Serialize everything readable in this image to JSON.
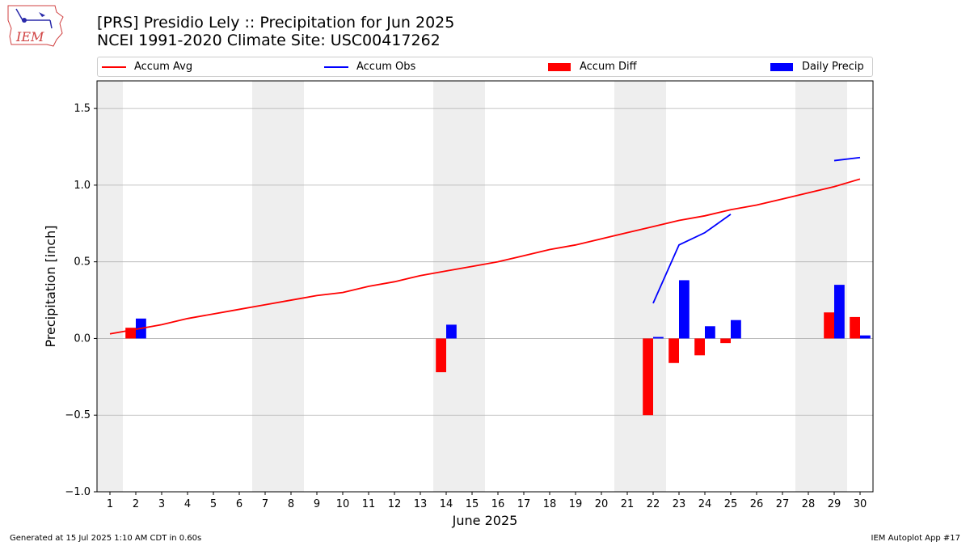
{
  "header": {
    "title_line1": "[PRS] Presidio Lely :: Precipitation for Jun 2025",
    "title_line2": "NCEI 1991-2020 Climate Site: USC00417262",
    "logo_text": "IEM"
  },
  "footer": {
    "generated": "Generated at 15 Jul 2025 1:10 AM CDT in 0.60s",
    "app": "IEM Autoplot App #17"
  },
  "colors": {
    "avg": "#ff0000",
    "obs": "#0000ff",
    "weekend_band": "#eeeeee",
    "grid": "#b0b0b0"
  },
  "chart_data": {
    "type": "bar",
    "xlabel": "June 2025",
    "ylabel": "Precipitation [inch]",
    "xlim": [
      0.5,
      30.5
    ],
    "ylim": [
      -1.0,
      1.68
    ],
    "yticks": [
      -1.0,
      -0.5,
      0.0,
      0.5,
      1.0,
      1.5
    ],
    "ytick_labels": [
      "−1.0",
      "−0.5",
      "0.0",
      "0.5",
      "1.0",
      "1.5"
    ],
    "x": [
      1,
      2,
      3,
      4,
      5,
      6,
      7,
      8,
      9,
      10,
      11,
      12,
      13,
      14,
      15,
      16,
      17,
      18,
      19,
      20,
      21,
      22,
      23,
      24,
      25,
      26,
      27,
      28,
      29,
      30
    ],
    "grid": "y",
    "legend_placement": "top",
    "weekend_days": [
      1,
      7,
      8,
      14,
      15,
      21,
      22,
      28,
      29
    ],
    "series": [
      {
        "name": "Accum Avg",
        "kind": "line",
        "values": [
          0.03,
          0.06,
          0.09,
          0.13,
          0.16,
          0.19,
          0.22,
          0.25,
          0.28,
          0.3,
          0.34,
          0.37,
          0.41,
          0.44,
          0.47,
          0.5,
          0.54,
          0.58,
          0.61,
          0.65,
          0.69,
          0.73,
          0.77,
          0.8,
          0.84,
          0.87,
          0.91,
          0.95,
          0.99,
          1.04
        ]
      },
      {
        "name": "Accum Obs",
        "kind": "line",
        "values": [
          null,
          null,
          null,
          null,
          null,
          null,
          null,
          null,
          null,
          null,
          null,
          null,
          null,
          null,
          null,
          null,
          null,
          null,
          null,
          null,
          null,
          0.23,
          0.61,
          0.69,
          0.81,
          null,
          null,
          null,
          1.16,
          1.18
        ]
      },
      {
        "name": "Accum Diff",
        "kind": "bar",
        "values": [
          null,
          0.07,
          null,
          null,
          null,
          null,
          null,
          null,
          null,
          null,
          null,
          null,
          null,
          -0.22,
          null,
          null,
          null,
          null,
          null,
          null,
          null,
          -0.5,
          -0.16,
          -0.11,
          -0.03,
          null,
          null,
          null,
          0.17,
          0.14
        ]
      },
      {
        "name": "Daily Precip",
        "kind": "bar",
        "values": [
          null,
          0.13,
          null,
          null,
          null,
          null,
          null,
          null,
          null,
          null,
          null,
          null,
          null,
          0.09,
          null,
          null,
          null,
          null,
          null,
          null,
          null,
          0.01,
          0.38,
          0.08,
          0.12,
          null,
          null,
          null,
          0.35,
          0.02
        ]
      }
    ]
  }
}
